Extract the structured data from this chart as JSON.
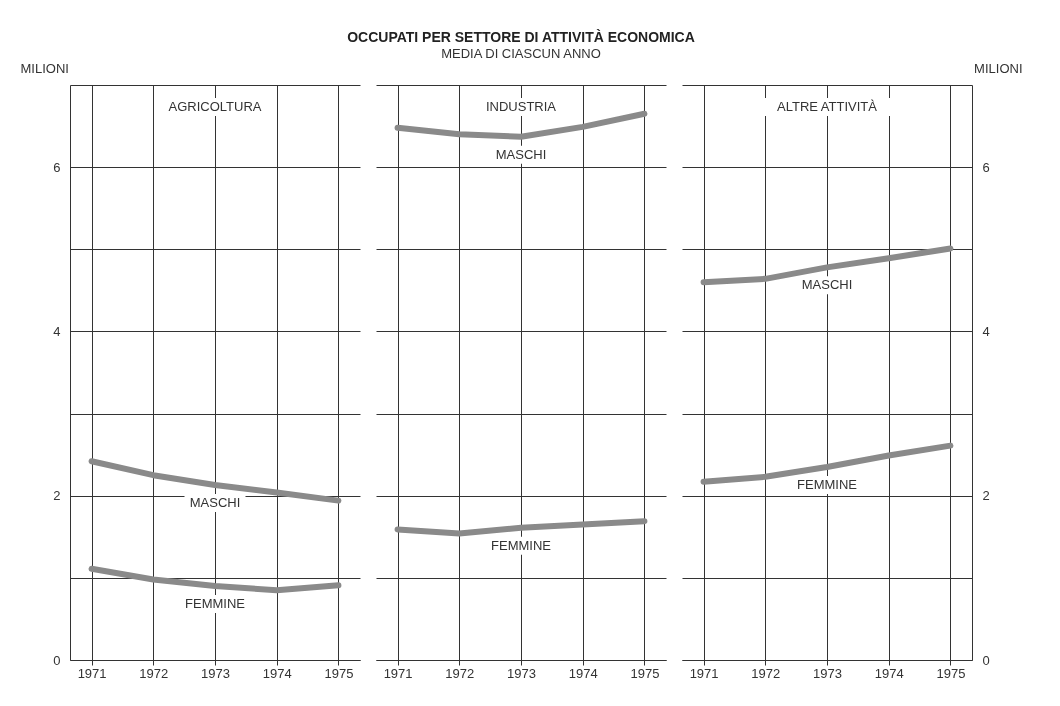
{
  "chart_data": [
    {
      "type": "line",
      "ylabel": "MILIONI",
      "annotations": [
        "AGRICOLTURA"
      ],
      "x": [
        1971,
        1972,
        1973,
        1974,
        1975
      ],
      "xlim": [
        1970.65,
        1975.35
      ],
      "xticks": [
        1971,
        1972,
        1973,
        1974,
        1975
      ],
      "ylim": [
        0,
        7
      ],
      "yticks": [
        0,
        {
          "value": 1,
          "label": null
        },
        2,
        {
          "value": 3,
          "label": null
        },
        4,
        {
          "value": 5,
          "label": null
        },
        6,
        {
          "value": 7,
          "label": null
        }
      ],
      "grid": true,
      "series": [
        {
          "name": "MASCHI",
          "color": "#8a8a8a",
          "values": [
            2.42,
            2.25,
            2.13,
            2.04,
            1.94
          ]
        },
        {
          "name": "FEMMINE",
          "color": "#8a8a8a",
          "values": [
            1.11,
            0.98,
            0.9,
            0.85,
            0.91
          ]
        }
      ]
    },
    {
      "type": "line",
      "title": "OCCUPATI PER SETTORE DI ATTIVITÀ ECONOMICA",
      "subtitle": "MEDIA DI CIASCUN ANNO",
      "annotations": [
        "INDUSTRIA"
      ],
      "x": [
        1971,
        1972,
        1973,
        1974,
        1975
      ],
      "xlim": [
        1970.65,
        1975.35
      ],
      "xticks": [
        1971,
        1972,
        1973,
        1974,
        1975
      ],
      "ylim": [
        0,
        7
      ],
      "yticks": [
        0,
        {
          "value": 1,
          "label": null
        },
        2,
        {
          "value": 3,
          "label": null
        },
        4,
        {
          "value": 5,
          "label": null
        },
        6,
        {
          "value": 7,
          "label": null
        }
      ],
      "tick_labels": "x",
      "grid": true,
      "series": [
        {
          "name": "MASCHI",
          "color": "#8a8a8a",
          "values": [
            6.48,
            6.4,
            6.37,
            6.49,
            6.65
          ]
        },
        {
          "name": "FEMMINE",
          "color": "#8a8a8a",
          "values": [
            1.59,
            1.54,
            1.61,
            1.65,
            1.69
          ]
        }
      ]
    },
    {
      "type": "line",
      "y2label": "MILIONI",
      "annotations": [
        "ALTRE ATTIVITÀ"
      ],
      "x": [
        1971,
        1972,
        1973,
        1974,
        1975
      ],
      "xlim": [
        1970.65,
        1975.35
      ],
      "xticks": [
        1971,
        1972,
        1973,
        1974,
        1975
      ],
      "y2lim": [
        0,
        7
      ],
      "y2ticks": [
        0,
        {
          "value": 1,
          "label": null
        },
        2,
        {
          "value": 3,
          "label": null
        },
        4,
        {
          "value": 5,
          "label": null
        },
        6,
        {
          "value": 7,
          "label": null
        }
      ],
      "grid": true,
      "series": [
        {
          "name": "MASCHI",
          "color": "#8a8a8a",
          "axis": "y2",
          "values": [
            4.6,
            4.64,
            4.78,
            4.89,
            5.01
          ]
        },
        {
          "name": "FEMMINE",
          "color": "#8a8a8a",
          "axis": "y2",
          "values": [
            2.17,
            2.23,
            2.35,
            2.49,
            2.61
          ]
        }
      ]
    }
  ]
}
